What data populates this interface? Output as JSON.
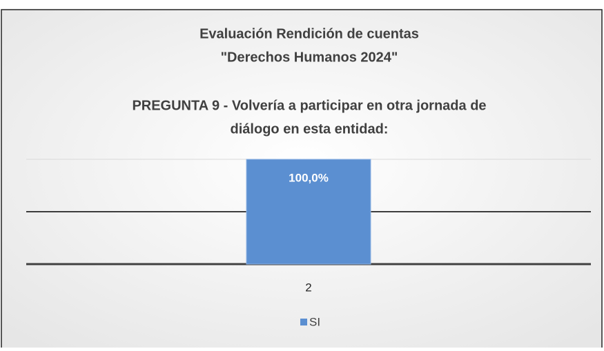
{
  "chart_data": {
    "type": "bar",
    "title": [
      "Evaluación Rendición de cuentas",
      "\"Derechos Humanos 2024\""
    ],
    "subtitle": [
      "PREGUNTA 9 - Volvería a participar en otra jornada de",
      "diálogo en esta entidad:"
    ],
    "categories": [
      "2"
    ],
    "series": [
      {
        "name": "SI",
        "color": "#5b8fd1",
        "values": [
          100
        ],
        "value_labels": [
          "100,0%"
        ]
      }
    ],
    "ylim": [
      0,
      100
    ],
    "yticks": [
      0,
      50,
      100
    ],
    "grid": true,
    "legend": "bottom"
  }
}
